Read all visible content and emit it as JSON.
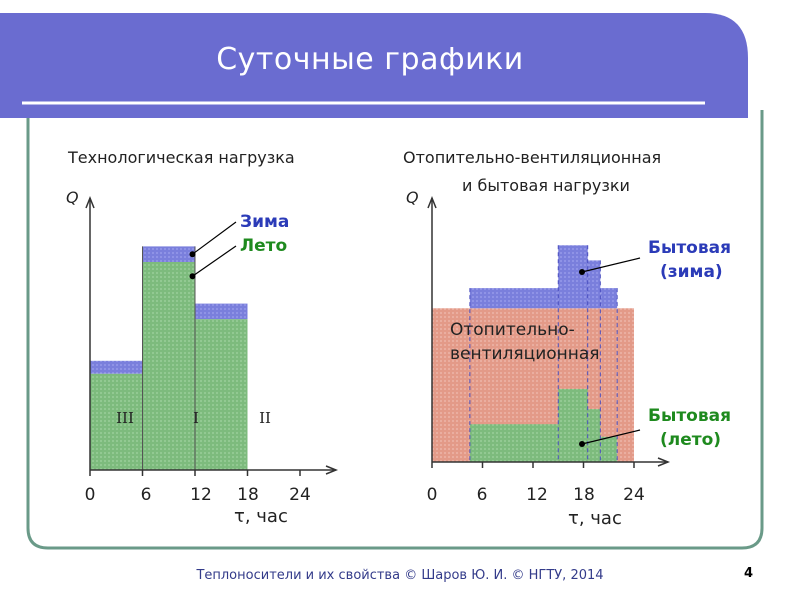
{
  "slide": {
    "title": "Суточные графики"
  },
  "footer": {
    "text": "Теплоносители и их свойства © Шаров Ю. И. © НГТУ, 2014",
    "page": "4"
  },
  "colors": {
    "banner": "#6a6cd0",
    "frame": "#6a9a88",
    "winter": "#7a7fdc",
    "summer": "#7dbb7d",
    "heating": "#e39a88",
    "summer_label": "#1e8a1e",
    "winter_label": "#2b3bb8"
  },
  "chart_data": [
    {
      "type": "bar",
      "title": "Технологическая нагрузка",
      "ylabel": "Q",
      "xlabel_symbol": "τ",
      "xlabel_unit": ", час",
      "x_ticks": [
        "0",
        "6",
        "12",
        "18",
        "24"
      ],
      "xlim": [
        0,
        24
      ],
      "ylim": [
        0,
        10
      ],
      "shifts": [
        {
          "label": "III",
          "x_start": 0,
          "x_end": 6,
          "summer": 3.7,
          "winter": 4.2
        },
        {
          "label": "I",
          "x_start": 6,
          "x_end": 12,
          "summer": 8.0,
          "winter": 8.6
        },
        {
          "label": "II",
          "x_start": 12,
          "x_end": 18,
          "summer": 5.8,
          "winter": 6.4
        }
      ],
      "legend": {
        "winter": "Зима",
        "summer": "Лето"
      }
    },
    {
      "type": "bar",
      "title_line1": "Отопительно-вентиляционная",
      "title_line2": "и бытовая нагрузки",
      "ylabel": "Q",
      "xlabel_symbol": "τ",
      "xlabel_unit": ", час",
      "x_ticks": [
        "0",
        "6",
        "12",
        "18",
        "24"
      ],
      "xlim": [
        0,
        24
      ],
      "ylim": [
        0,
        10
      ],
      "heating_level": 6.1,
      "household_winter": [
        {
          "x_start": 0,
          "x_end": 4.5,
          "value": 0
        },
        {
          "x_start": 4.5,
          "x_end": 15,
          "value": 6.9
        },
        {
          "x_start": 15,
          "x_end": 18.5,
          "value": 8.6
        },
        {
          "x_start": 18.5,
          "x_end": 20,
          "value": 8.0
        },
        {
          "x_start": 20,
          "x_end": 22,
          "value": 6.9
        }
      ],
      "household_summer": [
        {
          "x_start": 4.5,
          "x_end": 15,
          "value": 1.5
        },
        {
          "x_start": 15,
          "x_end": 18.5,
          "value": 2.9
        },
        {
          "x_start": 18.5,
          "x_end": 20,
          "value": 2.1
        },
        {
          "x_start": 20,
          "x_end": 22,
          "value": 1.0
        }
      ],
      "label_heating_line1": "Отопительно-",
      "label_heating_line2": "вентиляционная",
      "legend": {
        "winter_line1": "Бытовая",
        "winter_line2": "(зима)",
        "summer_line1": "Бытовая",
        "summer_line2": "(лето)"
      }
    }
  ]
}
